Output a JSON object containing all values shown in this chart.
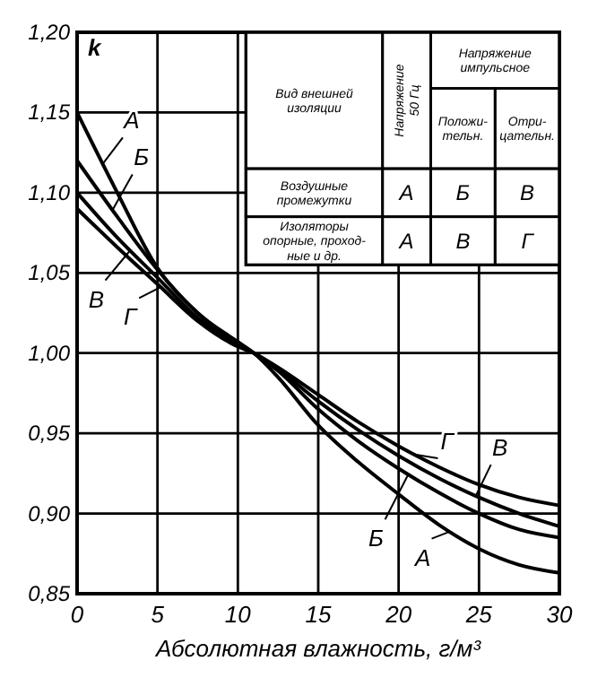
{
  "chart_data": {
    "type": "line",
    "xlabel": "Абсолютная влажность, г/м³",
    "ylabel": "k",
    "x": [
      0,
      2.5,
      5,
      7.5,
      10,
      11,
      12.5,
      15,
      17.5,
      20,
      22.5,
      25,
      27.5,
      30
    ],
    "series": [
      {
        "name": "А",
        "color": "#000000",
        "values": [
          1.15,
          1.1,
          1.053,
          1.025,
          1.007,
          1.0,
          0.985,
          0.955,
          0.932,
          0.912,
          0.893,
          0.878,
          0.868,
          0.863
        ]
      },
      {
        "name": "Б",
        "color": "#000000",
        "values": [
          1.12,
          1.085,
          1.052,
          1.025,
          1.006,
          1.0,
          0.989,
          0.965,
          0.945,
          0.928,
          0.913,
          0.9,
          0.89,
          0.885
        ]
      },
      {
        "name": "В",
        "color": "#000000",
        "values": [
          1.1,
          1.072,
          1.047,
          1.022,
          1.005,
          1.0,
          0.99,
          0.97,
          0.952,
          0.936,
          0.922,
          0.91,
          0.9,
          0.892
        ]
      },
      {
        "name": "Г",
        "color": "#000000",
        "values": [
          1.09,
          1.066,
          1.043,
          1.02,
          1.004,
          1.0,
          0.991,
          0.974,
          0.957,
          0.942,
          0.929,
          0.918,
          0.91,
          0.905
        ]
      }
    ],
    "xlim": [
      0,
      30
    ],
    "xticks": [
      0,
      5,
      10,
      15,
      20,
      25,
      30
    ],
    "ylim": [
      0.85,
      1.2
    ],
    "yticks": [
      {
        "value": 0.85,
        "label": "0,85"
      },
      {
        "value": 0.9,
        "label": "0,90"
      },
      {
        "value": 0.95,
        "label": "0,95"
      },
      {
        "value": 1.0,
        "label": "1,00"
      },
      {
        "value": 1.05,
        "label": "1,05"
      },
      {
        "value": 1.1,
        "label": "1,10"
      },
      {
        "value": 1.15,
        "label": "1,15"
      },
      {
        "value": 1.2,
        "label": "1,20"
      }
    ],
    "grid": true,
    "legend": "top right",
    "marker": "none",
    "line_style": "solid",
    "annotations": [
      "Вид внешней\nизоляции",
      "Напряжение\n50 Гц",
      "Напряжение\nимпульсное",
      "Положи-\nтельн.",
      "Отри-\nцательн.",
      "Воздушные\nпромежутки",
      "А",
      "Б",
      "В",
      "Изоляторы\nопорные, проход-\nные и др.",
      "А",
      "В",
      "Г"
    ]
  }
}
